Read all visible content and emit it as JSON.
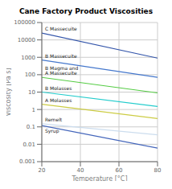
{
  "chart_data": {
    "type": "line",
    "title": "Cane Factory Product Viscosities",
    "xlabel": "Temperature [°C]",
    "ylabel": "Viscosity [Pa s]",
    "x": [
      20,
      80
    ],
    "xlim": [
      20,
      80
    ],
    "ylim": [
      0.001,
      100000
    ],
    "xticks": [
      20,
      40,
      60,
      80
    ],
    "yticks": [
      0.001,
      0.01,
      0.1,
      1,
      10,
      100,
      1000,
      10000,
      100000
    ],
    "log": "y",
    "grid": true,
    "series": [
      {
        "name": "C Massecuite",
        "color": "#3355aa",
        "values": [
          25000,
          900
        ]
      },
      {
        "name": "B Massecuite",
        "color": "#4477cc",
        "values": [
          700,
          70
        ]
      },
      {
        "name": "B Magma and\nA Massecuite",
        "color": "#55cc44",
        "values": [
          70,
          9
        ]
      },
      {
        "name": "B Molasses",
        "color": "#22cccc",
        "values": [
          10,
          1.5
        ]
      },
      {
        "name": "A Molasses",
        "color": "#cccc44",
        "values": [
          2.0,
          0.3
        ]
      },
      {
        "name": "Remelt",
        "color": "#ccddee",
        "values": [
          0.15,
          0.035
        ]
      },
      {
        "name": "Syrup",
        "color": "#4466bb",
        "values": [
          0.12,
          0.006
        ]
      }
    ]
  }
}
